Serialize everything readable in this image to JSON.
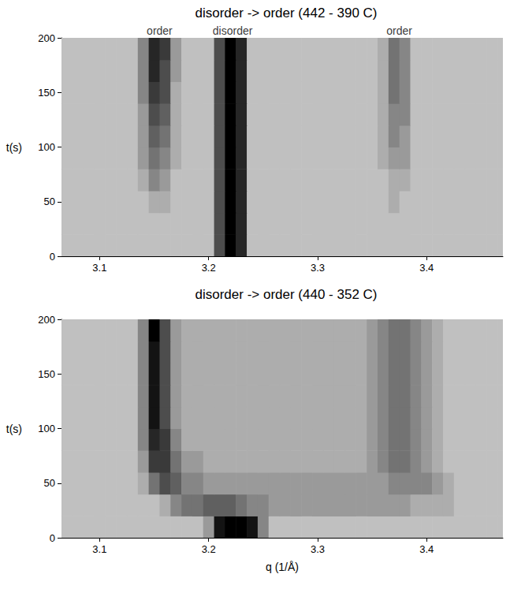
{
  "chart_data": [
    {
      "type": "heatmap",
      "title": "disorder -> order (442 - 390 C)",
      "ylabel": "t(s)",
      "xlim": [
        3.065,
        3.47
      ],
      "xticks": [
        3.1,
        3.2,
        3.3,
        3.4
      ],
      "ylim": [
        0,
        200
      ],
      "yticks": [
        0,
        50,
        100,
        150,
        200
      ],
      "annotations": [
        {
          "text": "order",
          "x": 3.155
        },
        {
          "text": "disorder",
          "x": 3.222
        },
        {
          "text": "order",
          "x": 3.375
        }
      ],
      "zlim": [
        0,
        10
      ],
      "x": [
        3.07,
        3.08,
        3.09,
        3.1,
        3.11,
        3.12,
        3.13,
        3.14,
        3.15,
        3.16,
        3.17,
        3.18,
        3.19,
        3.2,
        3.21,
        3.22,
        3.23,
        3.24,
        3.25,
        3.26,
        3.27,
        3.28,
        3.29,
        3.3,
        3.31,
        3.32,
        3.33,
        3.34,
        3.35,
        3.36,
        3.37,
        3.38,
        3.39,
        3.4,
        3.41,
        3.42,
        3.43,
        3.44,
        3.45,
        3.46,
        3.47
      ],
      "y": [
        10,
        30,
        50,
        70,
        90,
        110,
        130,
        150,
        170,
        190
      ],
      "cells": [
        [
          0,
          0,
          0,
          0,
          0,
          0,
          0,
          0,
          0,
          0,
          0,
          0,
          0,
          0,
          6,
          10,
          8,
          0,
          0,
          0,
          0,
          0,
          0,
          0,
          0,
          0,
          0,
          0,
          0,
          0,
          0,
          0,
          0,
          0,
          0,
          0,
          0,
          0,
          0,
          0,
          0
        ],
        [
          0,
          0,
          0,
          0,
          0,
          0,
          0,
          0,
          0,
          0,
          0,
          0,
          0,
          0,
          6,
          10,
          8,
          0,
          0,
          0,
          0,
          0,
          0,
          0,
          0,
          0,
          0,
          0,
          0,
          0,
          0,
          0,
          0,
          0,
          0,
          0,
          0,
          0,
          0,
          0,
          0
        ],
        [
          0,
          0,
          0,
          0,
          0,
          0,
          0,
          0,
          1,
          1,
          0,
          0,
          0,
          0,
          6,
          10,
          8,
          0,
          0,
          0,
          0,
          0,
          0,
          0,
          0,
          0,
          0,
          0,
          0,
          0,
          1,
          0,
          0,
          0,
          0,
          0,
          0,
          0,
          0,
          0,
          0
        ],
        [
          0,
          0,
          0,
          0,
          0,
          0,
          0,
          1,
          3,
          2,
          0,
          0,
          0,
          0,
          6,
          10,
          8,
          0,
          0,
          0,
          0,
          0,
          0,
          0,
          0,
          0,
          0,
          0,
          0,
          0,
          1,
          1,
          0,
          0,
          0,
          0,
          0,
          0,
          0,
          0,
          0
        ],
        [
          0,
          0,
          0,
          0,
          0,
          0,
          0,
          2,
          4,
          3,
          1,
          0,
          0,
          0,
          6,
          10,
          8,
          0,
          0,
          0,
          0,
          0,
          0,
          0,
          0,
          0,
          0,
          0,
          0,
          1,
          2,
          2,
          0,
          0,
          0,
          0,
          0,
          0,
          0,
          0,
          0
        ],
        [
          0,
          0,
          0,
          0,
          0,
          0,
          0,
          2,
          5,
          4,
          1,
          0,
          0,
          0,
          6,
          10,
          8,
          0,
          0,
          0,
          0,
          0,
          0,
          0,
          0,
          0,
          0,
          0,
          0,
          1,
          3,
          2,
          0,
          0,
          0,
          0,
          0,
          0,
          0,
          0,
          0
        ],
        [
          0,
          0,
          0,
          0,
          0,
          0,
          0,
          2,
          6,
          5,
          1,
          0,
          0,
          0,
          6,
          10,
          8,
          0,
          0,
          0,
          0,
          0,
          0,
          0,
          0,
          0,
          0,
          0,
          0,
          1,
          3,
          3,
          0,
          0,
          0,
          0,
          0,
          0,
          0,
          0,
          0
        ],
        [
          0,
          0,
          0,
          0,
          0,
          0,
          0,
          3,
          7,
          6,
          1,
          0,
          0,
          0,
          6,
          10,
          8,
          0,
          0,
          0,
          0,
          0,
          0,
          0,
          0,
          0,
          0,
          0,
          0,
          1,
          4,
          3,
          0,
          0,
          0,
          0,
          0,
          0,
          0,
          0,
          0
        ],
        [
          0,
          0,
          0,
          0,
          0,
          0,
          0,
          3,
          8,
          6,
          2,
          0,
          0,
          0,
          6,
          10,
          8,
          0,
          0,
          0,
          0,
          0,
          0,
          0,
          0,
          0,
          0,
          0,
          0,
          1,
          4,
          3,
          0,
          0,
          0,
          0,
          0,
          0,
          0,
          0,
          0
        ],
        [
          0,
          0,
          0,
          0,
          0,
          0,
          0,
          3,
          8,
          7,
          2,
          0,
          0,
          0,
          6,
          10,
          8,
          0,
          0,
          0,
          0,
          0,
          0,
          0,
          0,
          0,
          0,
          0,
          0,
          1,
          4,
          3,
          0,
          0,
          0,
          0,
          0,
          0,
          0,
          0,
          0
        ]
      ]
    },
    {
      "type": "heatmap",
      "title": "disorder -> order (440 - 352 C)",
      "xlabel": "q (1/Å)",
      "ylabel": "t(s)",
      "xlim": [
        3.065,
        3.47
      ],
      "xticks": [
        3.1,
        3.2,
        3.3,
        3.4
      ],
      "ylim": [
        0,
        200
      ],
      "yticks": [
        0,
        50,
        100,
        150,
        200
      ],
      "zlim": [
        0,
        10
      ],
      "x": [
        3.07,
        3.08,
        3.09,
        3.1,
        3.11,
        3.12,
        3.13,
        3.14,
        3.15,
        3.16,
        3.17,
        3.18,
        3.19,
        3.2,
        3.21,
        3.22,
        3.23,
        3.24,
        3.25,
        3.26,
        3.27,
        3.28,
        3.29,
        3.3,
        3.31,
        3.32,
        3.33,
        3.34,
        3.35,
        3.36,
        3.37,
        3.38,
        3.39,
        3.4,
        3.41,
        3.42,
        3.43,
        3.44,
        3.45,
        3.46,
        3.47
      ],
      "y": [
        10,
        30,
        50,
        70,
        90,
        110,
        130,
        150,
        170,
        190
      ],
      "cells": [
        [
          0,
          0,
          0,
          0,
          0,
          0,
          0,
          0,
          0,
          0,
          0,
          0,
          0,
          2,
          9,
          10,
          10,
          9,
          3,
          0,
          0,
          0,
          0,
          0,
          0,
          0,
          0,
          0,
          0,
          0,
          0,
          0,
          0,
          0,
          0,
          0,
          0,
          0,
          0,
          0,
          0
        ],
        [
          0,
          0,
          0,
          0,
          0,
          0,
          0,
          0,
          0,
          1,
          3,
          4,
          4,
          5,
          5,
          5,
          4,
          3,
          3,
          2,
          2,
          2,
          2,
          2,
          2,
          2,
          2,
          2,
          2,
          2,
          2,
          2,
          1,
          1,
          1,
          1,
          0,
          0,
          0,
          0,
          0
        ],
        [
          0,
          0,
          0,
          0,
          0,
          0,
          0,
          1,
          4,
          6,
          5,
          3,
          3,
          2,
          2,
          2,
          2,
          2,
          2,
          2,
          2,
          2,
          2,
          2,
          2,
          2,
          2,
          2,
          2,
          2,
          3,
          3,
          3,
          3,
          2,
          1,
          0,
          0,
          0,
          0,
          0
        ],
        [
          0,
          0,
          0,
          0,
          0,
          0,
          0,
          2,
          7,
          7,
          4,
          2,
          2,
          1,
          1,
          1,
          1,
          1,
          1,
          1,
          1,
          1,
          1,
          1,
          1,
          1,
          1,
          1,
          2,
          3,
          4,
          4,
          3,
          2,
          1,
          0,
          0,
          0,
          0,
          0,
          0
        ],
        [
          0,
          0,
          0,
          0,
          0,
          0,
          0,
          3,
          8,
          7,
          3,
          1,
          1,
          1,
          1,
          1,
          1,
          1,
          1,
          1,
          1,
          1,
          1,
          1,
          1,
          1,
          1,
          1,
          2,
          3,
          4,
          4,
          3,
          2,
          1,
          0,
          0,
          0,
          0,
          0,
          0
        ],
        [
          0,
          0,
          0,
          0,
          0,
          0,
          0,
          3,
          9,
          6,
          2,
          1,
          1,
          1,
          1,
          1,
          1,
          1,
          1,
          1,
          1,
          1,
          1,
          1,
          1,
          1,
          1,
          1,
          2,
          3,
          4,
          4,
          3,
          2,
          1,
          0,
          0,
          0,
          0,
          0,
          0
        ],
        [
          0,
          0,
          0,
          0,
          0,
          0,
          0,
          3,
          9,
          6,
          2,
          1,
          1,
          1,
          1,
          1,
          1,
          1,
          1,
          1,
          1,
          1,
          1,
          1,
          1,
          1,
          1,
          1,
          2,
          3,
          4,
          4,
          3,
          2,
          1,
          0,
          0,
          0,
          0,
          0,
          0
        ],
        [
          0,
          0,
          0,
          0,
          0,
          0,
          0,
          3,
          9,
          6,
          2,
          1,
          1,
          1,
          1,
          1,
          1,
          1,
          1,
          1,
          1,
          1,
          1,
          1,
          1,
          1,
          1,
          1,
          2,
          3,
          4,
          4,
          3,
          2,
          1,
          0,
          0,
          0,
          0,
          0,
          0
        ],
        [
          0,
          0,
          0,
          0,
          0,
          0,
          0,
          3,
          9,
          6,
          2,
          1,
          1,
          1,
          1,
          1,
          1,
          1,
          1,
          1,
          1,
          1,
          1,
          1,
          1,
          1,
          1,
          1,
          2,
          3,
          4,
          4,
          3,
          2,
          1,
          0,
          0,
          0,
          0,
          0,
          0
        ],
        [
          0,
          0,
          0,
          0,
          0,
          0,
          0,
          3,
          10,
          6,
          2,
          1,
          1,
          1,
          1,
          1,
          1,
          1,
          1,
          1,
          1,
          1,
          1,
          1,
          1,
          1,
          1,
          1,
          2,
          3,
          4,
          4,
          3,
          2,
          1,
          0,
          0,
          0,
          0,
          0,
          0
        ]
      ]
    }
  ]
}
